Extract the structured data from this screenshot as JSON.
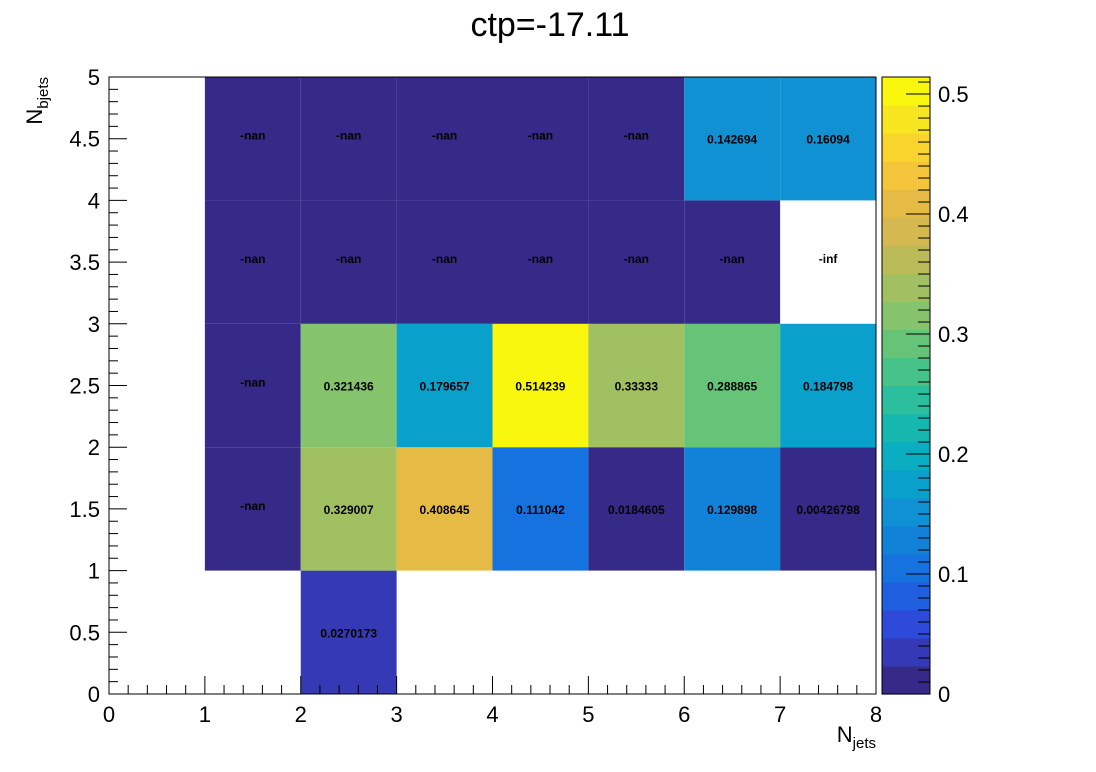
{
  "chart_data": {
    "type": "heatmap",
    "title": "ctp=-17.11",
    "xlabel": "N",
    "xlabel_sub": "jets",
    "ylabel": "N",
    "ylabel_sub": "bjets",
    "xlim": [
      0,
      8
    ],
    "ylim": [
      0,
      5
    ],
    "x_bin_edges": [
      0,
      1,
      2,
      3,
      4,
      5,
      6,
      7,
      8
    ],
    "y_bin_edges": [
      0,
      1,
      2,
      3,
      4,
      5
    ],
    "x_ticks": [
      "0",
      "1",
      "2",
      "3",
      "4",
      "5",
      "6",
      "7",
      "8"
    ],
    "y_ticks": [
      "0",
      "0.5",
      "1",
      "1.5",
      "2",
      "2.5",
      "3",
      "3.5",
      "4",
      "4.5",
      "5"
    ],
    "zlim": [
      0,
      0.5142
    ],
    "colorbar_ticks": [
      "0",
      "0.1",
      "0.2",
      "0.3",
      "0.4",
      "0.5"
    ],
    "palette": [
      "#352a87",
      "#3639b5",
      "#2d4bd8",
      "#1f5fe0",
      "#1572de",
      "#1281d8",
      "#1091d3",
      "#0aa0cc",
      "#0aaec0",
      "#16b7af",
      "#2bbf9d",
      "#47c389",
      "#66c479",
      "#85c36c",
      "#a1c062",
      "#bcbb5a",
      "#d3b94f",
      "#e5bb45",
      "#f4c43a",
      "#f9d42c",
      "#f7e520",
      "#f9f70e"
    ],
    "cells": [
      {
        "x": 2.5,
        "y": 0.5,
        "value": 0.0270173,
        "label": "0.0270173"
      },
      {
        "x": 1.5,
        "y": 1.5,
        "value": "nan",
        "label": "-nan"
      },
      {
        "x": 2.5,
        "y": 1.5,
        "value": 0.329007,
        "label": "0.329007"
      },
      {
        "x": 3.5,
        "y": 1.5,
        "value": 0.408645,
        "label": "0.408645"
      },
      {
        "x": 4.5,
        "y": 1.5,
        "value": 0.111042,
        "label": "0.111042"
      },
      {
        "x": 5.5,
        "y": 1.5,
        "value": 0.0184605,
        "label": "0.0184605"
      },
      {
        "x": 6.5,
        "y": 1.5,
        "value": 0.129898,
        "label": "0.129898"
      },
      {
        "x": 7.5,
        "y": 1.5,
        "value": 0.00426798,
        "label": "0.00426798"
      },
      {
        "x": 1.5,
        "y": 2.5,
        "value": "nan",
        "label": "-nan"
      },
      {
        "x": 2.5,
        "y": 2.5,
        "value": 0.321436,
        "label": "0.321436"
      },
      {
        "x": 3.5,
        "y": 2.5,
        "value": 0.179657,
        "label": "0.179657"
      },
      {
        "x": 4.5,
        "y": 2.5,
        "value": 0.514239,
        "label": "0.514239"
      },
      {
        "x": 5.5,
        "y": 2.5,
        "value": 0.33333,
        "label": "0.33333"
      },
      {
        "x": 6.5,
        "y": 2.5,
        "value": 0.288865,
        "label": "0.288865"
      },
      {
        "x": 7.5,
        "y": 2.5,
        "value": 0.184798,
        "label": "0.184798"
      },
      {
        "x": 1.5,
        "y": 3.5,
        "value": "nan",
        "label": "-nan"
      },
      {
        "x": 2.5,
        "y": 3.5,
        "value": "nan",
        "label": "-nan"
      },
      {
        "x": 3.5,
        "y": 3.5,
        "value": "nan",
        "label": "-nan"
      },
      {
        "x": 4.5,
        "y": 3.5,
        "value": "nan",
        "label": "-nan"
      },
      {
        "x": 5.5,
        "y": 3.5,
        "value": "nan",
        "label": "-nan"
      },
      {
        "x": 6.5,
        "y": 3.5,
        "value": "nan",
        "label": "-nan"
      },
      {
        "x": 7.5,
        "y": 3.5,
        "value": "-inf",
        "label": "-inf"
      },
      {
        "x": 1.5,
        "y": 4.5,
        "value": "nan",
        "label": "-nan"
      },
      {
        "x": 2.5,
        "y": 4.5,
        "value": "nan",
        "label": "-nan"
      },
      {
        "x": 3.5,
        "y": 4.5,
        "value": "nan",
        "label": "-nan"
      },
      {
        "x": 4.5,
        "y": 4.5,
        "value": "nan",
        "label": "-nan"
      },
      {
        "x": 5.5,
        "y": 4.5,
        "value": "nan",
        "label": "-nan"
      },
      {
        "x": 6.5,
        "y": 4.5,
        "value": 0.142694,
        "label": "0.142694"
      },
      {
        "x": 7.5,
        "y": 4.5,
        "value": 0.16094,
        "label": "0.16094"
      }
    ]
  }
}
